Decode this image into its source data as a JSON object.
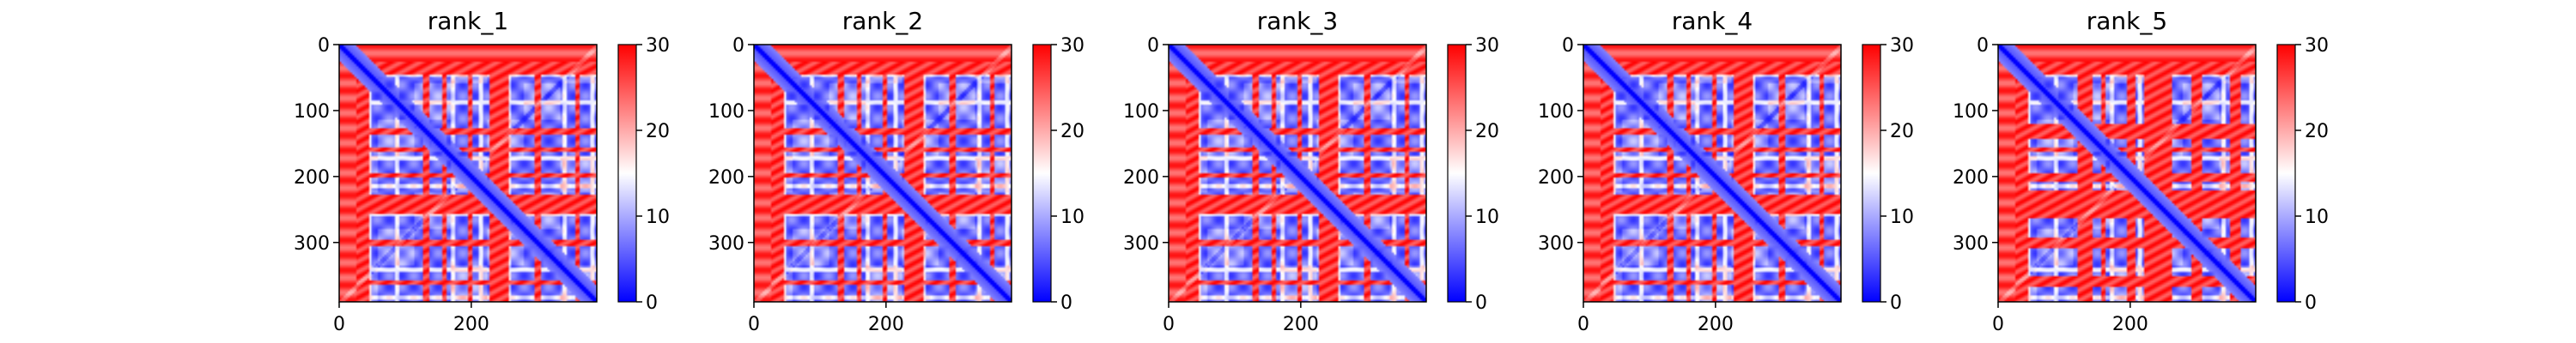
{
  "chart_data": [
    {
      "type": "heatmap",
      "title": "rank_1",
      "x_ticks": [
        0,
        200
      ],
      "y_ticks": [
        0,
        100,
        200,
        300
      ],
      "xlim": [
        0,
        390
      ],
      "ylim": [
        390,
        0
      ],
      "colorbar": {
        "min": 0,
        "max": 30,
        "ticks": [
          0,
          10,
          20,
          30
        ],
        "colormap": "bwr"
      },
      "description_values": {
        "diagonal": 0,
        "typical_off_diagonal_low": 8,
        "typical_off_diagonal_high": 28
      },
      "red_bands": [
        [
          0,
          45
        ],
        [
          125,
          135
        ],
        [
          155,
          160
        ],
        [
          195,
          200
        ],
        [
          225,
          255
        ],
        [
          295,
          305
        ],
        [
          355,
          362
        ]
      ],
      "red_columns": [
        [
          0,
          25
        ]
      ]
    },
    {
      "type": "heatmap",
      "title": "rank_2",
      "x_ticks": [
        0,
        200
      ],
      "y_ticks": [
        0,
        100,
        200,
        300
      ],
      "xlim": [
        0,
        390
      ],
      "ylim": [
        390,
        0
      ],
      "colorbar": {
        "min": 0,
        "max": 30,
        "ticks": [
          0,
          10,
          20,
          30
        ],
        "colormap": "bwr"
      },
      "red_bands": [
        [
          0,
          45
        ],
        [
          125,
          135
        ],
        [
          155,
          160
        ],
        [
          195,
          200
        ],
        [
          225,
          255
        ],
        [
          295,
          305
        ],
        [
          355,
          362
        ]
      ],
      "red_columns": [
        [
          0,
          25
        ]
      ]
    },
    {
      "type": "heatmap",
      "title": "rank_3",
      "x_ticks": [
        0,
        200
      ],
      "y_ticks": [
        0,
        100,
        200,
        300
      ],
      "xlim": [
        0,
        390
      ],
      "ylim": [
        390,
        0
      ],
      "colorbar": {
        "min": 0,
        "max": 30,
        "ticks": [
          0,
          10,
          20,
          30
        ],
        "colormap": "bwr"
      },
      "red_bands": [
        [
          0,
          45
        ],
        [
          125,
          135
        ],
        [
          155,
          160
        ],
        [
          195,
          200
        ],
        [
          225,
          255
        ],
        [
          295,
          305
        ],
        [
          355,
          362
        ]
      ],
      "red_columns": [
        [
          0,
          25
        ]
      ]
    },
    {
      "type": "heatmap",
      "title": "rank_4",
      "x_ticks": [
        0,
        200
      ],
      "y_ticks": [
        0,
        100,
        200,
        300
      ],
      "xlim": [
        0,
        390
      ],
      "ylim": [
        390,
        0
      ],
      "colorbar": {
        "min": 0,
        "max": 30,
        "ticks": [
          0,
          10,
          20,
          30
        ],
        "colormap": "bwr"
      },
      "red_bands": [
        [
          0,
          45
        ],
        [
          125,
          135
        ],
        [
          155,
          160
        ],
        [
          195,
          200
        ],
        [
          225,
          255
        ],
        [
          295,
          305
        ],
        [
          355,
          362
        ]
      ],
      "red_columns": [
        [
          0,
          25
        ]
      ]
    },
    {
      "type": "heatmap",
      "title": "rank_5",
      "x_ticks": [
        0,
        200
      ],
      "y_ticks": [
        0,
        100,
        200,
        300
      ],
      "xlim": [
        0,
        390
      ],
      "ylim": [
        390,
        0
      ],
      "colorbar": {
        "min": 0,
        "max": 30,
        "ticks": [
          0,
          10,
          20,
          30
        ],
        "colormap": "bwr"
      },
      "red_bands": [
        [
          0,
          45
        ],
        [
          120,
          140
        ],
        [
          155,
          160
        ],
        [
          195,
          205
        ],
        [
          220,
          260
        ],
        [
          290,
          308
        ],
        [
          350,
          365
        ]
      ],
      "red_columns": [
        [
          0,
          25
        ]
      ]
    }
  ]
}
